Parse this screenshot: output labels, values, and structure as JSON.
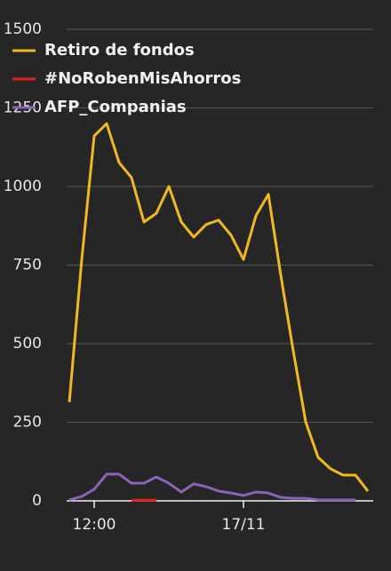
{
  "chart_data": {
    "type": "line",
    "categories": [
      null,
      null,
      "12:00",
      null,
      null,
      null,
      null,
      null,
      null,
      null,
      null,
      null,
      null,
      null,
      "17/11",
      null,
      null,
      null,
      null,
      null,
      null,
      null,
      null,
      null,
      null
    ],
    "series": [
      {
        "name": "Retiro de fondos",
        "color": "#f2b824",
        "values": [
          314,
          768,
          1161,
          1200,
          1076,
          1028,
          887,
          915,
          1000,
          887,
          839,
          879,
          893,
          845,
          768,
          907,
          975,
          717,
          477,
          251,
          138,
          102,
          82,
          82,
          31
        ]
      },
      {
        "name": "#NoRobenMisAhorros",
        "color": "#e0221e",
        "values": [
          null,
          null,
          null,
          null,
          null,
          2,
          2,
          2,
          null,
          null,
          null,
          null,
          null,
          null,
          null,
          null,
          null,
          null,
          null,
          null,
          null,
          null,
          null,
          null,
          null
        ]
      },
      {
        "name": "AFP_Companias",
        "color": "#8a62b8",
        "values": [
          3,
          14,
          37,
          85,
          85,
          56,
          56,
          76,
          56,
          28,
          54,
          45,
          31,
          25,
          17,
          28,
          25,
          11,
          8,
          8,
          3,
          3,
          3,
          3,
          null
        ]
      }
    ],
    "ylim": [
      0,
      1500
    ],
    "yticks": [
      0,
      250,
      500,
      750,
      1000,
      1250,
      1500
    ],
    "grid": true,
    "legend": "top-left"
  }
}
